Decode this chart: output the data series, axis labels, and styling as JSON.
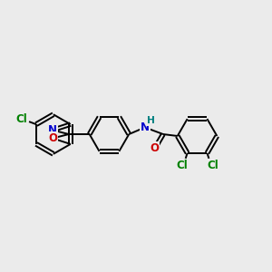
{
  "background_color": "#ebebeb",
  "bond_color": "#000000",
  "lw": 1.4,
  "atom_colors": {
    "Cl": "#008000",
    "N": "#0000cc",
    "O": "#cc0000",
    "H": "#008080"
  },
  "fs": 8.5,
  "fig_width": 3.0,
  "fig_height": 3.0,
  "dpi": 100
}
